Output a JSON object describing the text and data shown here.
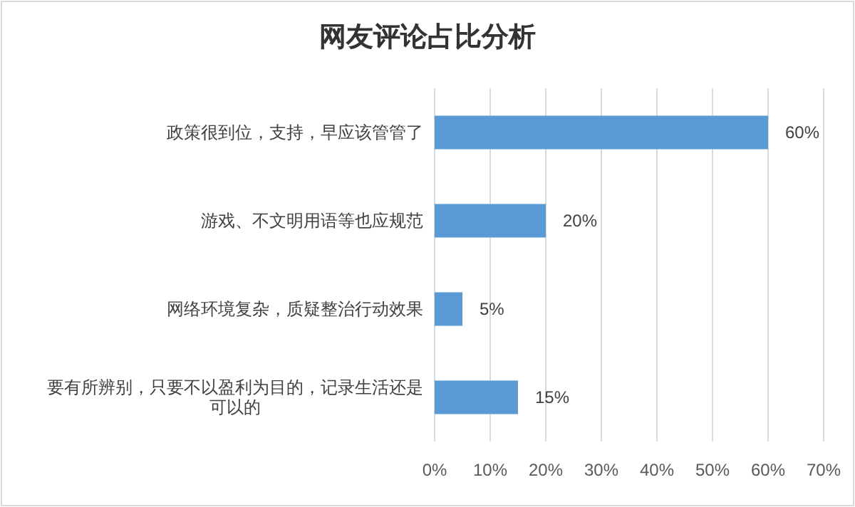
{
  "chart_data": {
    "type": "bar",
    "orientation": "horizontal",
    "title": "网友评论占比分析",
    "categories": [
      "政策很到位，支持，早应该管管了",
      "游戏、不文明用语等也应规范",
      "网络环境复杂，质疑整治行动效果",
      "要有所辨别，只要不以盈利为目的，记录生活还是可以的"
    ],
    "values": [
      60,
      20,
      5,
      15
    ],
    "value_labels": [
      "60%",
      "20%",
      "5%",
      "15%"
    ],
    "color": "#5b9bd5",
    "xlim": [
      0,
      70
    ],
    "xticks": [
      {
        "value": 0,
        "label": "0%"
      },
      {
        "value": 10,
        "label": "10%"
      },
      {
        "value": 20,
        "label": "20%"
      },
      {
        "value": 30,
        "label": "30%"
      },
      {
        "value": 40,
        "label": "40%"
      },
      {
        "value": 50,
        "label": "50%"
      },
      {
        "value": 60,
        "label": "60%"
      },
      {
        "value": 70,
        "label": "70%"
      }
    ],
    "grid": "x"
  }
}
